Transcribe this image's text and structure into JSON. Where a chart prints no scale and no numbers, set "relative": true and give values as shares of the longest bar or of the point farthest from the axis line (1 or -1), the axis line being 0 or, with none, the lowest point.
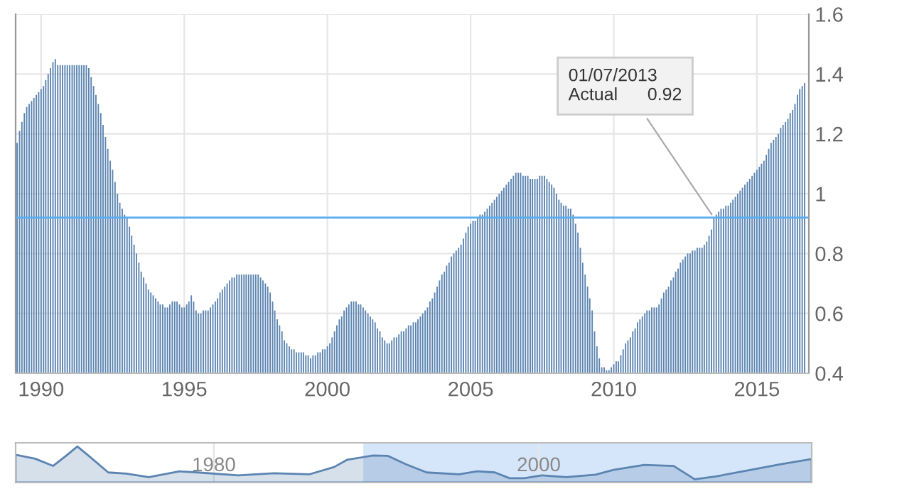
{
  "chart_data": [
    {
      "type": "bar",
      "color": "#5b84b1",
      "x": [
        "1989-03",
        "1989-04",
        "1989-05",
        "1989-06",
        "1989-07",
        "1989-08",
        "1989-09",
        "1989-10",
        "1989-11",
        "1989-12",
        "1990-01",
        "1990-02",
        "1990-03",
        "1990-04",
        "1990-05",
        "1990-06",
        "1990-07",
        "1990-08",
        "1990-09",
        "1990-10",
        "1990-11",
        "1990-12",
        "1991-01",
        "1991-02",
        "1991-03",
        "1991-04",
        "1991-05",
        "1991-06",
        "1991-07",
        "1991-08",
        "1991-09",
        "1991-10",
        "1991-11",
        "1991-12",
        "1992-01",
        "1992-02",
        "1992-03",
        "1992-04",
        "1992-05",
        "1992-06",
        "1992-07",
        "1992-08",
        "1992-09",
        "1992-10",
        "1992-11",
        "1992-12",
        "1993-01",
        "1993-02",
        "1993-03",
        "1993-04",
        "1993-05",
        "1993-06",
        "1993-07",
        "1993-08",
        "1993-09",
        "1993-10",
        "1993-11",
        "1993-12",
        "1994-01",
        "1994-02",
        "1994-03",
        "1994-04",
        "1994-05",
        "1994-06",
        "1994-07",
        "1994-08",
        "1994-09",
        "1994-10",
        "1994-11",
        "1994-12",
        "1995-01",
        "1995-02",
        "1995-03",
        "1995-04",
        "1995-05",
        "1995-06",
        "1995-07",
        "1995-08",
        "1995-09",
        "1995-10",
        "1995-11",
        "1995-12",
        "1996-01",
        "1996-02",
        "1996-03",
        "1996-04",
        "1996-05",
        "1996-06",
        "1996-07",
        "1996-08",
        "1996-09",
        "1996-10",
        "1996-11",
        "1996-12",
        "1997-01",
        "1997-02",
        "1997-03",
        "1997-04",
        "1997-05",
        "1997-06",
        "1997-07",
        "1997-08",
        "1997-09",
        "1997-10",
        "1997-11",
        "1997-12",
        "1998-01",
        "1998-02",
        "1998-03",
        "1998-04",
        "1998-05",
        "1998-06",
        "1998-07",
        "1998-08",
        "1998-09",
        "1998-10",
        "1998-11",
        "1998-12",
        "1999-01",
        "1999-02",
        "1999-03",
        "1999-04",
        "1999-05",
        "1999-06",
        "1999-07",
        "1999-08",
        "1999-09",
        "1999-10",
        "1999-11",
        "1999-12",
        "2000-01",
        "2000-02",
        "2000-03",
        "2000-04",
        "2000-05",
        "2000-06",
        "2000-07",
        "2000-08",
        "2000-09",
        "2000-10",
        "2000-11",
        "2000-12",
        "2001-01",
        "2001-02",
        "2001-03",
        "2001-04",
        "2001-05",
        "2001-06",
        "2001-07",
        "2001-08",
        "2001-09",
        "2001-10",
        "2001-11",
        "2001-12",
        "2002-01",
        "2002-02",
        "2002-03",
        "2002-04",
        "2002-05",
        "2002-06",
        "2002-07",
        "2002-08",
        "2002-09",
        "2002-10",
        "2002-11",
        "2002-12",
        "2003-01",
        "2003-02",
        "2003-03",
        "2003-04",
        "2003-05",
        "2003-06",
        "2003-07",
        "2003-08",
        "2003-09",
        "2003-10",
        "2003-11",
        "2003-12",
        "2004-01",
        "2004-02",
        "2004-03",
        "2004-04",
        "2004-05",
        "2004-06",
        "2004-07",
        "2004-08",
        "2004-09",
        "2004-10",
        "2004-11",
        "2004-12",
        "2005-01",
        "2005-02",
        "2005-03",
        "2005-04",
        "2005-05",
        "2005-06",
        "2005-07",
        "2005-08",
        "2005-09",
        "2005-10",
        "2005-11",
        "2005-12",
        "2006-01",
        "2006-02",
        "2006-03",
        "2006-04",
        "2006-05",
        "2006-06",
        "2006-07",
        "2006-08",
        "2006-09",
        "2006-10",
        "2006-11",
        "2006-12",
        "2007-01",
        "2007-02",
        "2007-03",
        "2007-04",
        "2007-05",
        "2007-06",
        "2007-07",
        "2007-08",
        "2007-09",
        "2007-10",
        "2007-11",
        "2007-12",
        "2008-01",
        "2008-02",
        "2008-03",
        "2008-04",
        "2008-05",
        "2008-06",
        "2008-07",
        "2008-08",
        "2008-09",
        "2008-10",
        "2008-11",
        "2008-12",
        "2009-01",
        "2009-02",
        "2009-03",
        "2009-04",
        "2009-05",
        "2009-06",
        "2009-07",
        "2009-08",
        "2009-09",
        "2009-10",
        "2009-11",
        "2009-12",
        "2010-01",
        "2010-02",
        "2010-03",
        "2010-04",
        "2010-05",
        "2010-06",
        "2010-07",
        "2010-08",
        "2010-09",
        "2010-10",
        "2010-11",
        "2010-12",
        "2011-01",
        "2011-02",
        "2011-03",
        "2011-04",
        "2011-05",
        "2011-06",
        "2011-07",
        "2011-08",
        "2011-09",
        "2011-10",
        "2011-11",
        "2011-12",
        "2012-01",
        "2012-02",
        "2012-03",
        "2012-04",
        "2012-05",
        "2012-06",
        "2012-07",
        "2012-08",
        "2012-09",
        "2012-10",
        "2012-11",
        "2012-12",
        "2013-01",
        "2013-02",
        "2013-03",
        "2013-04",
        "2013-05",
        "2013-06",
        "2013-07",
        "2013-08",
        "2013-09",
        "2013-10",
        "2013-11",
        "2013-12",
        "2014-01",
        "2014-02",
        "2014-03",
        "2014-04",
        "2014-05",
        "2014-06",
        "2014-07",
        "2014-08",
        "2014-09",
        "2014-10",
        "2014-11",
        "2014-12",
        "2015-01",
        "2015-02",
        "2015-03",
        "2015-04",
        "2015-05",
        "2015-06",
        "2015-07",
        "2015-08",
        "2015-09",
        "2015-10",
        "2015-11",
        "2015-12",
        "2016-01",
        "2016-02",
        "2016-03",
        "2016-04",
        "2016-05",
        "2016-06",
        "2016-07",
        "2016-08",
        "2016-09"
      ],
      "values": [
        1.17,
        1.21,
        1.24,
        1.27,
        1.29,
        1.3,
        1.31,
        1.32,
        1.33,
        1.34,
        1.35,
        1.36,
        1.38,
        1.4,
        1.42,
        1.44,
        1.45,
        1.43,
        1.43,
        1.43,
        1.43,
        1.43,
        1.43,
        1.43,
        1.43,
        1.43,
        1.43,
        1.43,
        1.43,
        1.43,
        1.42,
        1.39,
        1.36,
        1.33,
        1.3,
        1.27,
        1.23,
        1.19,
        1.15,
        1.11,
        1.08,
        1.04,
        1.0,
        0.97,
        0.95,
        0.93,
        0.92,
        0.89,
        0.86,
        0.83,
        0.8,
        0.77,
        0.74,
        0.72,
        0.7,
        0.68,
        0.67,
        0.66,
        0.65,
        0.64,
        0.63,
        0.63,
        0.62,
        0.62,
        0.63,
        0.64,
        0.64,
        0.64,
        0.63,
        0.62,
        0.62,
        0.63,
        0.64,
        0.66,
        0.64,
        0.61,
        0.6,
        0.6,
        0.61,
        0.61,
        0.61,
        0.62,
        0.63,
        0.64,
        0.65,
        0.67,
        0.68,
        0.69,
        0.7,
        0.71,
        0.72,
        0.72,
        0.73,
        0.73,
        0.73,
        0.73,
        0.73,
        0.73,
        0.73,
        0.73,
        0.73,
        0.73,
        0.72,
        0.71,
        0.7,
        0.69,
        0.67,
        0.64,
        0.61,
        0.58,
        0.56,
        0.54,
        0.51,
        0.5,
        0.49,
        0.48,
        0.48,
        0.47,
        0.47,
        0.47,
        0.47,
        0.46,
        0.46,
        0.45,
        0.46,
        0.46,
        0.47,
        0.47,
        0.48,
        0.48,
        0.49,
        0.5,
        0.52,
        0.54,
        0.56,
        0.58,
        0.59,
        0.61,
        0.62,
        0.63,
        0.64,
        0.64,
        0.64,
        0.63,
        0.63,
        0.62,
        0.61,
        0.6,
        0.59,
        0.58,
        0.57,
        0.55,
        0.54,
        0.52,
        0.51,
        0.5,
        0.5,
        0.51,
        0.52,
        0.52,
        0.53,
        0.54,
        0.54,
        0.55,
        0.56,
        0.56,
        0.57,
        0.57,
        0.58,
        0.59,
        0.6,
        0.61,
        0.62,
        0.64,
        0.65,
        0.67,
        0.69,
        0.71,
        0.73,
        0.74,
        0.76,
        0.77,
        0.79,
        0.8,
        0.81,
        0.82,
        0.83,
        0.85,
        0.87,
        0.89,
        0.9,
        0.91,
        0.91,
        0.92,
        0.93,
        0.93,
        0.94,
        0.95,
        0.96,
        0.97,
        0.98,
        0.99,
        1.0,
        1.01,
        1.02,
        1.03,
        1.04,
        1.05,
        1.06,
        1.07,
        1.07,
        1.07,
        1.06,
        1.06,
        1.06,
        1.05,
        1.05,
        1.05,
        1.05,
        1.06,
        1.06,
        1.06,
        1.05,
        1.04,
        1.03,
        1.02,
        1.0,
        0.98,
        0.97,
        0.96,
        0.96,
        0.95,
        0.95,
        0.93,
        0.9,
        0.87,
        0.82,
        0.77,
        0.73,
        0.69,
        0.65,
        0.61,
        0.54,
        0.49,
        0.45,
        0.42,
        0.42,
        0.41,
        0.41,
        0.42,
        0.43,
        0.44,
        0.44,
        0.46,
        0.48,
        0.5,
        0.51,
        0.52,
        0.54,
        0.55,
        0.57,
        0.58,
        0.59,
        0.6,
        0.61,
        0.61,
        0.62,
        0.62,
        0.62,
        0.63,
        0.65,
        0.67,
        0.68,
        0.69,
        0.71,
        0.72,
        0.74,
        0.75,
        0.77,
        0.78,
        0.79,
        0.8,
        0.8,
        0.81,
        0.81,
        0.82,
        0.82,
        0.82,
        0.83,
        0.84,
        0.86,
        0.88,
        0.92,
        0.93,
        0.94,
        0.95,
        0.95,
        0.96,
        0.96,
        0.97,
        0.98,
        0.99,
        1.0,
        1.01,
        1.02,
        1.03,
        1.04,
        1.05,
        1.06,
        1.07,
        1.08,
        1.09,
        1.1,
        1.11,
        1.13,
        1.15,
        1.17,
        1.18,
        1.19,
        1.2,
        1.22,
        1.23,
        1.24,
        1.25,
        1.27,
        1.28,
        1.3,
        1.33,
        1.35,
        1.36,
        1.37
      ],
      "xlim": [
        "1989-02-10",
        "2016-10-25"
      ],
      "xticks": [
        "1990",
        "1995",
        "2000",
        "2005",
        "2010",
        "2015"
      ],
      "ylim": [
        0.4,
        1.6
      ],
      "yticks": [
        0.4,
        0.6,
        0.8,
        1,
        1.2,
        1.4,
        1.6
      ],
      "grid": true,
      "ref_lines": [
        {
          "axis": "y",
          "value": 0.92,
          "color": "#5aaef0"
        }
      ],
      "annotations": [
        {
          "text": "01/07/2013\nActual      0.92",
          "x": "2013-07",
          "y": 0.92
        }
      ]
    },
    {
      "type": "area",
      "relative": true,
      "color": "#5b84b1",
      "x": [
        1967.8,
        1969.0,
        1970.1,
        1970.9,
        1971.6,
        1972.3,
        1973.5,
        1974.6,
        1976.0,
        1977.9,
        1979.0,
        1981.5,
        1983.7,
        1985.9,
        1987.4,
        1988.2,
        1989.8,
        1990.7,
        1991.8,
        1993.1,
        1995.1,
        1996.2,
        1997.3,
        1998.2,
        1999.1,
        2000.2,
        2001.7,
        2003.5,
        2004.6,
        2006.5,
        2008.3,
        2009.6,
        2010.9,
        2012.7,
        2014.9,
        2016.8
      ],
      "values": [
        0.77,
        0.66,
        0.46,
        0.74,
        1,
        0.74,
        0.28,
        0.25,
        0.15,
        0.31,
        0.28,
        0.2,
        0.26,
        0.23,
        0.43,
        0.63,
        0.75,
        0.74,
        0.51,
        0.28,
        0.23,
        0.31,
        0.28,
        0.12,
        0.12,
        0.2,
        0.15,
        0.22,
        0.35,
        0.49,
        0.46,
        0.09,
        0.17,
        0.32,
        0.51,
        0.65
      ],
      "xlim": [
        1967.8,
        2016.8
      ],
      "xticks": [
        1980,
        2000
      ],
      "grid": "x",
      "bands": [
        {
          "axis": "x",
          "from": 1989.2,
          "to": 2016.8,
          "color": "#d6e6fa"
        }
      ]
    }
  ]
}
